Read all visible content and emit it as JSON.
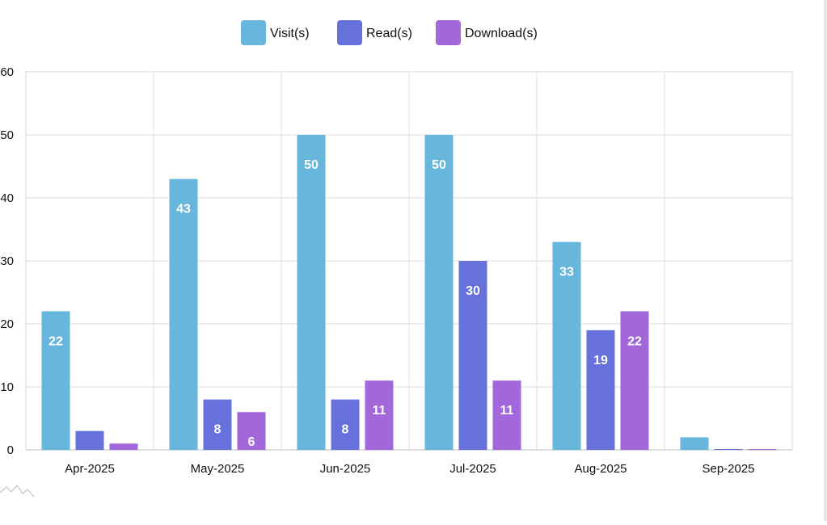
{
  "chart_data": {
    "type": "bar",
    "title": "",
    "xlabel": "",
    "ylabel": "",
    "ylim": [
      0,
      60
    ],
    "yticks": [
      0,
      10,
      20,
      30,
      40,
      50,
      60
    ],
    "grid": true,
    "legend_position": "top-center",
    "categories": [
      "Apr-2025",
      "May-2025",
      "Jun-2025",
      "Jul-2025",
      "Aug-2025",
      "Sep-2025"
    ],
    "series": [
      {
        "name": "Visit(s)",
        "color": "#67b7dc",
        "values": [
          22,
          43,
          50,
          50,
          33,
          2
        ]
      },
      {
        "name": "Read(s)",
        "color": "#6771dc",
        "values": [
          3,
          8,
          8,
          30,
          19,
          0
        ]
      },
      {
        "name": "Download(s)",
        "color": "#a367dc",
        "values": [
          1,
          6,
          11,
          11,
          22,
          0
        ]
      }
    ],
    "label_min_value": 5
  }
}
